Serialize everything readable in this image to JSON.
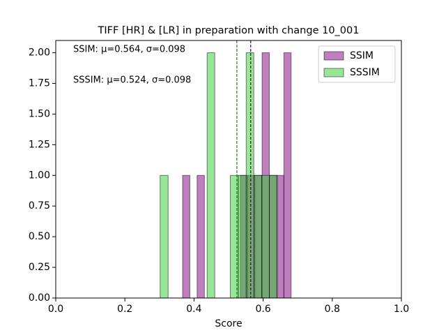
{
  "chart_data": {
    "type": "histogram",
    "title": "TIFF [HR] & [LR] in preparation with change 10_001",
    "xlabel": "Score",
    "xlim": [
      0,
      1
    ],
    "ylim": [
      0,
      2.1
    ],
    "xticks": [
      {
        "value": 0,
        "label": "0.0"
      },
      {
        "value": 0.2,
        "label": "0.2"
      },
      {
        "value": 0.4,
        "label": "0.4"
      },
      {
        "value": 0.6,
        "label": "0.6"
      },
      {
        "value": 0.8,
        "label": "0.8"
      },
      {
        "value": 1,
        "label": "1.0"
      }
    ],
    "yticks": [
      {
        "value": 0,
        "label": "0.00"
      },
      {
        "value": 0.25,
        "label": "0.25"
      },
      {
        "value": 0.5,
        "label": "0.50"
      },
      {
        "value": 0.75,
        "label": "0.75"
      },
      {
        "value": 1,
        "label": "1.00"
      },
      {
        "value": 1.25,
        "label": "1.25"
      },
      {
        "value": 1.5,
        "label": "1.50"
      },
      {
        "value": 1.75,
        "label": "1.75"
      },
      {
        "value": 2,
        "label": "2.00"
      }
    ],
    "legend": "upper right",
    "series": [
      {
        "name": "SSIM",
        "color": "#800080",
        "mean": 0.564,
        "annotation": "SSIM: μ=0.564, σ=0.098",
        "bins": [
          0.367,
          0.388,
          0.409,
          0.43,
          0.451,
          0.472,
          0.493,
          0.514,
          0.534,
          0.555,
          0.576,
          0.597,
          0.618,
          0.639,
          0.66,
          0.681
        ],
        "values": [
          1,
          0,
          1,
          0,
          0,
          0,
          0,
          0,
          1,
          1,
          1,
          2,
          1,
          1,
          2
        ]
      },
      {
        "name": "SSSIM",
        "color": "#32cd32",
        "mean": 0.524,
        "annotation": "SSSIM: μ=0.524, σ=0.098",
        "bins": [
          0.302,
          0.325,
          0.347,
          0.37,
          0.392,
          0.415,
          0.438,
          0.46,
          0.483,
          0.505,
          0.528,
          0.551,
          0.573,
          0.596,
          0.618,
          0.641
        ],
        "values": [
          1,
          0,
          0,
          0,
          0,
          0,
          2,
          0,
          0,
          1,
          1,
          2,
          1,
          1,
          1
        ]
      }
    ]
  }
}
